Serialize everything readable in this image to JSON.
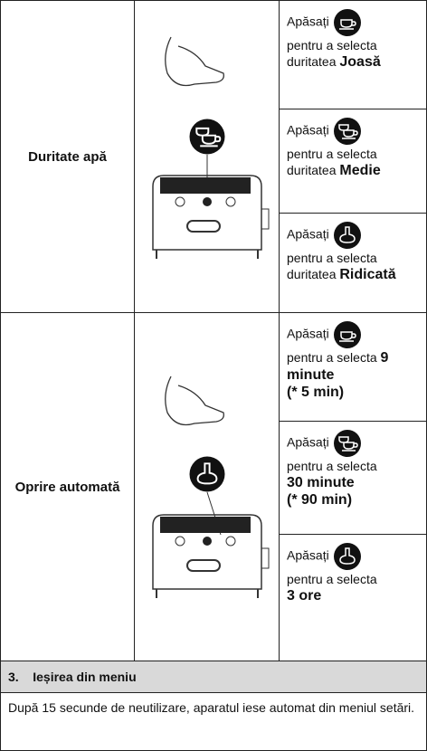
{
  "sections": [
    {
      "label": "Duritate apă",
      "options": [
        {
          "action": "Apăsați",
          "text": "pentru a selecta duritatea",
          "value": "Joasă"
        },
        {
          "action": "Apăsați",
          "text": "pentru a selecta duritatea",
          "value": "Medie"
        },
        {
          "action": "Apăsați",
          "text": "pentru a selecta duritatea",
          "value": "Ridicată"
        }
      ]
    },
    {
      "label": "Oprire automată",
      "options": [
        {
          "action": "Apăsați",
          "text": "pentru a selecta",
          "value": "9 minute",
          "note": "(* 5 min)"
        },
        {
          "action": "Apăsați",
          "text": "pentru a selecta",
          "value": "30 minute",
          "note": "(* 90 min)"
        },
        {
          "action": "Apăsați",
          "text": "pentru a selecta",
          "value": "3 ore"
        }
      ]
    }
  ],
  "footer": {
    "number": "3.",
    "heading": "Ieșirea din meniu",
    "text": "După 15 secunde de neutilizare, aparatul iese automat din meniul setări."
  }
}
